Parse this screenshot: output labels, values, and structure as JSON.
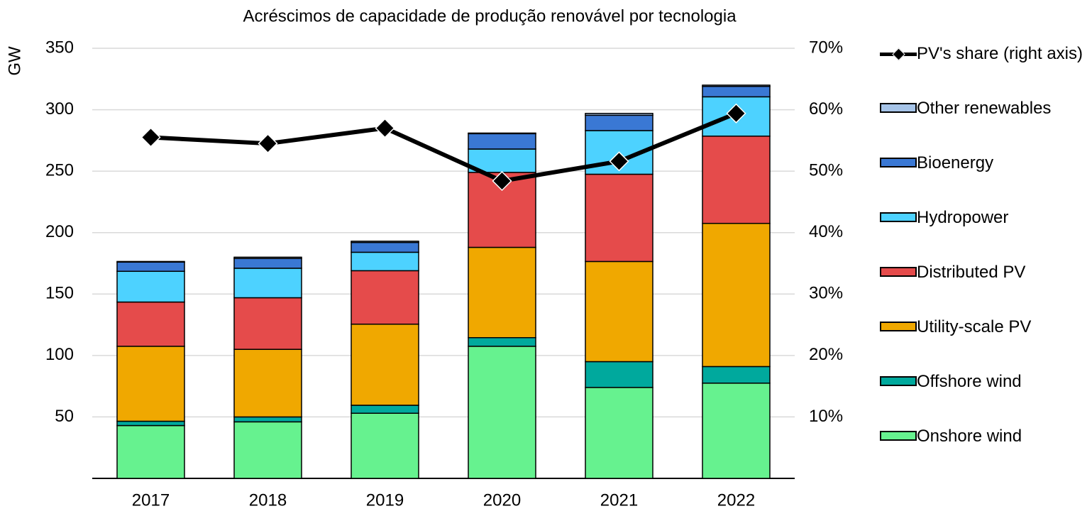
{
  "chart_data": {
    "type": "bar",
    "stacked": true,
    "title": "Acréscimos de capacidade de produção renovável por tecnologia",
    "ylabel": "GW",
    "categories": [
      "2017",
      "2018",
      "2019",
      "2020",
      "2021",
      "2022"
    ],
    "series": [
      {
        "name": "Onshore wind",
        "color": "#66f28f",
        "values": [
          43,
          46,
          53,
          107.5,
          74,
          77.5
        ]
      },
      {
        "name": "Offshore wind",
        "color": "#00a99d",
        "values": [
          3.5,
          4,
          6.5,
          7,
          21,
          13.5
        ]
      },
      {
        "name": "Utility-scale PV",
        "color": "#f0a800",
        "values": [
          61,
          55,
          66,
          73.5,
          81.5,
          116.5
        ]
      },
      {
        "name": "Distributed PV",
        "color": "#e54b4b",
        "values": [
          36,
          42,
          43.5,
          61,
          71,
          71
        ]
      },
      {
        "name": "Hydropower",
        "color": "#4dd2ff",
        "values": [
          25,
          24,
          15,
          19,
          35.5,
          32
        ]
      },
      {
        "name": "Bioenergy",
        "color": "#3a78d4",
        "values": [
          7.5,
          8,
          8,
          12.5,
          12.5,
          8.5
        ]
      },
      {
        "name": "Other renewables",
        "color": "#a6c4e8",
        "values": [
          0.5,
          1,
          1,
          0.5,
          1.5,
          1
        ]
      },
      {
        "name": "PV's share (right axis)",
        "type": "line",
        "axis": "y2",
        "color": "#000000",
        "values": [
          55.5,
          54.5,
          57,
          48.4,
          51.6,
          59.4
        ]
      }
    ],
    "ylim": [
      0,
      350
    ],
    "yticks": [
      50,
      100,
      150,
      200,
      250,
      300,
      350
    ],
    "y2lim": [
      0,
      70
    ],
    "y2ticks": [
      {
        "value": 10,
        "label": "10%"
      },
      {
        "value": 20,
        "label": "20%"
      },
      {
        "value": 30,
        "label": "30%"
      },
      {
        "value": 40,
        "label": "40%"
      },
      {
        "value": 50,
        "label": "50%"
      },
      {
        "value": 60,
        "label": "60%"
      },
      {
        "value": 70,
        "label": "70%"
      }
    ],
    "grid": true,
    "legend": "right"
  }
}
